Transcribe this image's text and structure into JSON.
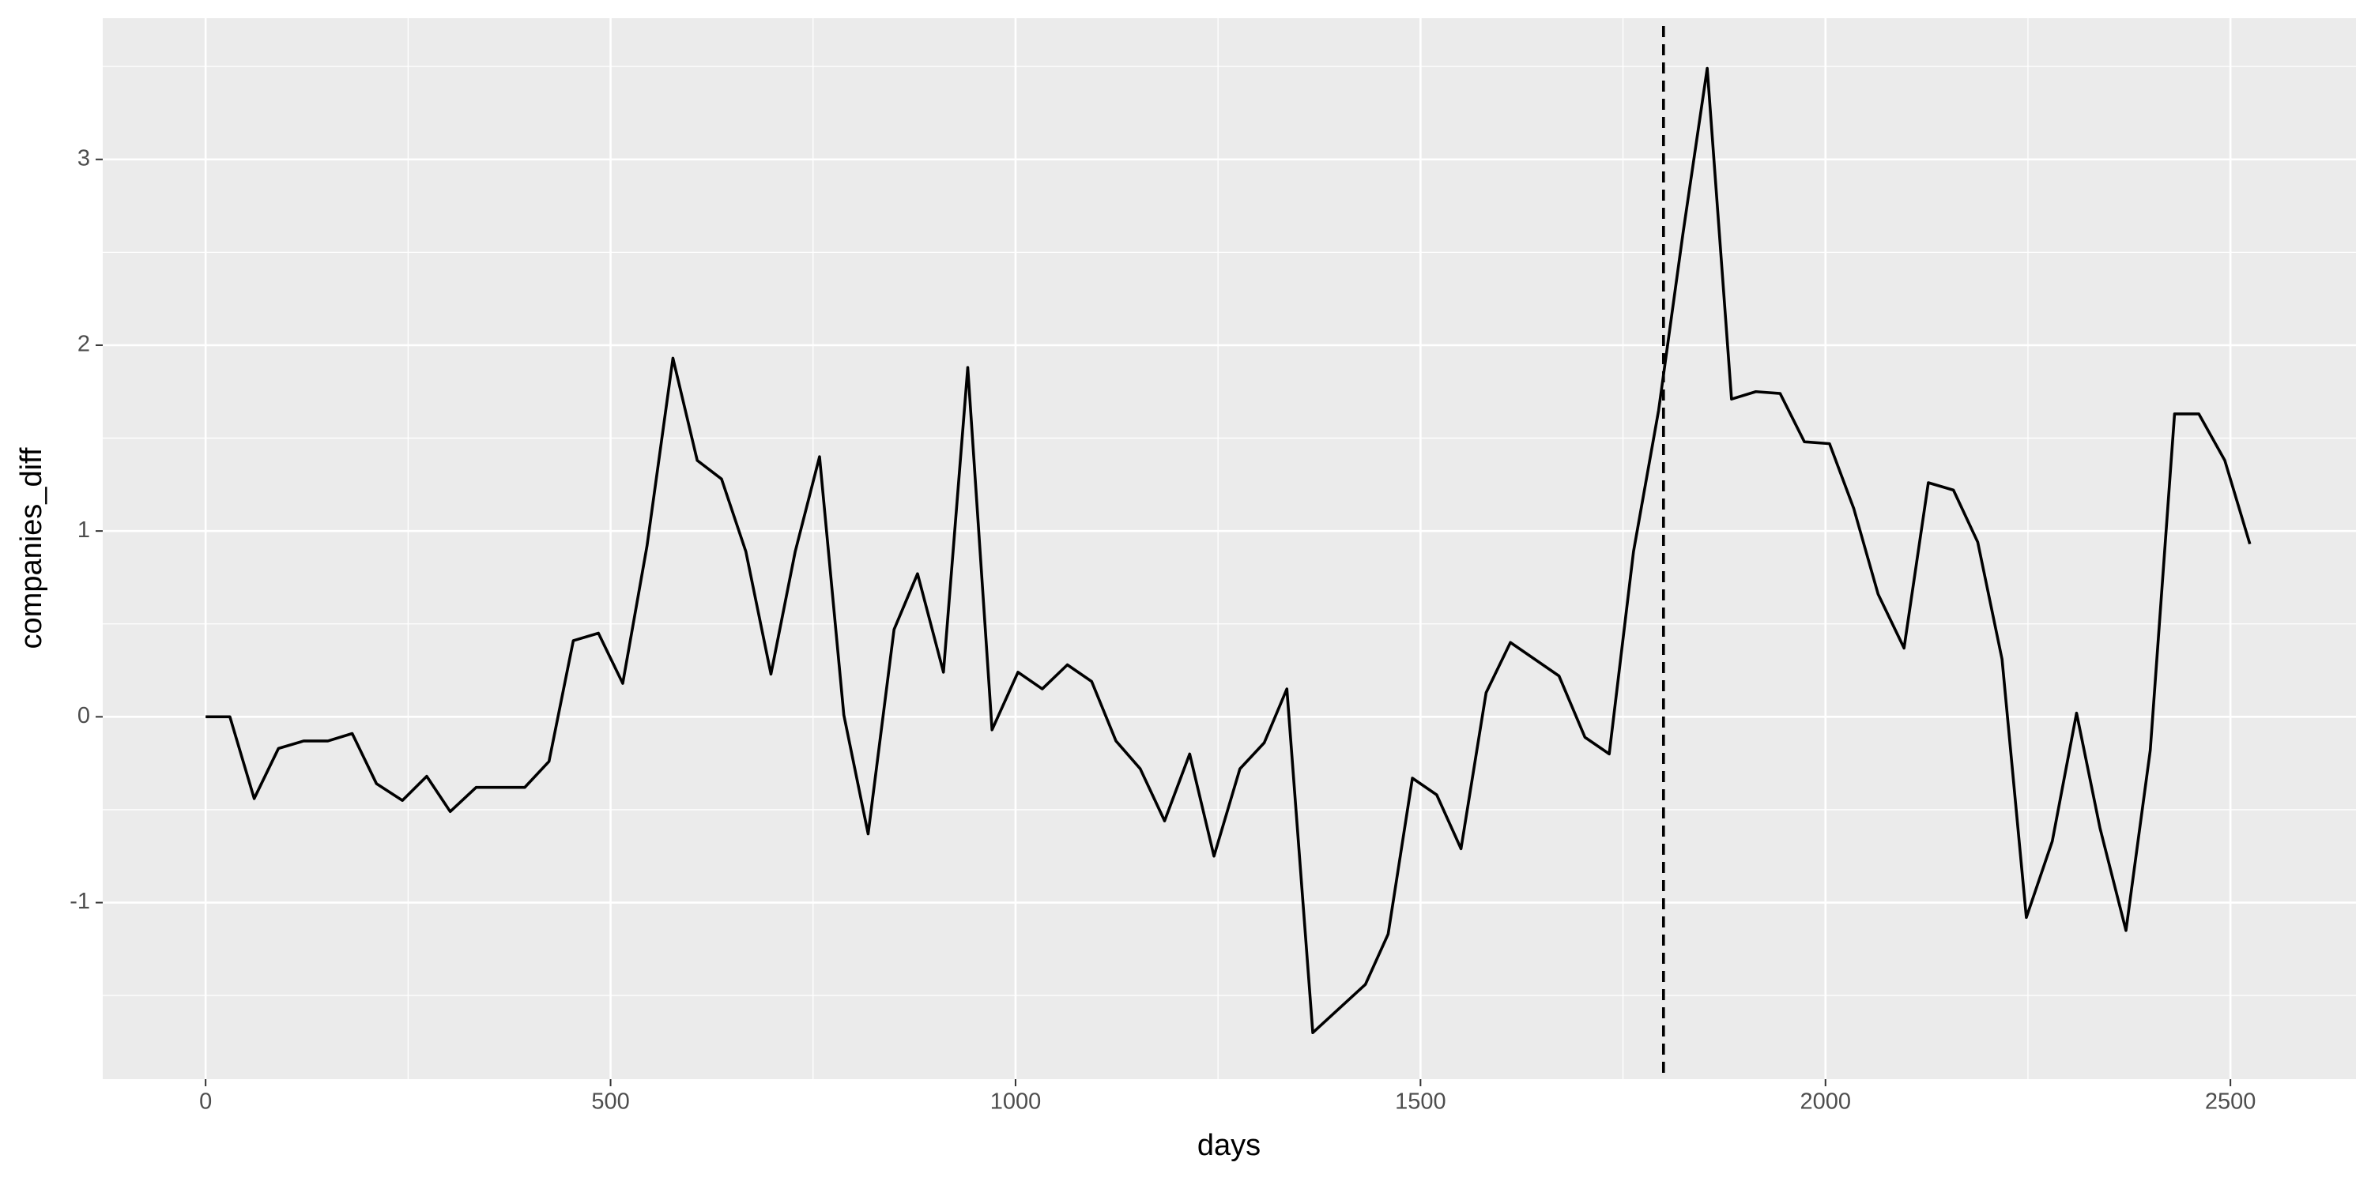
{
  "chart_data": {
    "type": "line",
    "x_label": "days",
    "y_label": "companies_diff",
    "x": [
      0,
      30,
      60,
      90,
      121,
      151,
      181,
      211,
      243,
      273,
      302,
      334,
      364,
      394,
      424,
      454,
      485,
      515,
      545,
      577,
      607,
      637,
      667,
      698,
      728,
      758,
      788,
      818,
      850,
      879,
      911,
      941,
      971,
      1003,
      1033,
      1064,
      1094,
      1124,
      1154,
      1184,
      1215,
      1245,
      1277,
      1307,
      1335,
      1367,
      1432,
      1460,
      1490,
      1520,
      1550,
      1581,
      1611,
      1671,
      1703,
      1733,
      1763,
      1794,
      1824,
      1854,
      1884,
      1914,
      1944,
      1974,
      2005,
      2035,
      2065,
      2097,
      2127,
      2158,
      2188,
      2218,
      2248,
      2280,
      2310,
      2339,
      2371,
      2401,
      2431,
      2461,
      2493,
      2524
    ],
    "series": [
      {
        "color": "#000000",
        "values": [
          0,
          0,
          -0.44,
          -0.17,
          -0.13,
          -0.13,
          -0.09,
          -0.36,
          -0.45,
          -0.32,
          -0.51,
          -0.38,
          -0.38,
          -0.38,
          -0.24,
          0.41,
          0.45,
          0.18,
          0.92,
          1.93,
          1.38,
          1.28,
          0.89,
          0.23,
          0.89,
          1.4,
          0.01,
          -0.63,
          0.47,
          0.77,
          0.24,
          1.88,
          -0.07,
          0.24,
          0.15,
          0.28,
          0.19,
          -0.13,
          -0.28,
          -0.56,
          -0.2,
          -0.75,
          -0.28,
          -0.14,
          0.15,
          -1.7,
          -1.44,
          -1.17,
          -0.33,
          -0.42,
          -0.71,
          0.13,
          0.4,
          0.22,
          -0.11,
          -0.2,
          0.89,
          1.65,
          2.6,
          3.49,
          1.71,
          1.75,
          1.74,
          1.48,
          1.47,
          1.12,
          0.66,
          0.37,
          1.26,
          1.22,
          0.94,
          0.31,
          -1.08,
          -0.67,
          0.02,
          -0.6,
          -1.15,
          -0.18,
          1.63,
          1.63,
          1.38,
          0.93
        ]
      }
    ],
    "vline": 1800,
    "xlim": [
      -127,
      2655
    ],
    "ylim": [
      -1.95,
      3.76
    ],
    "xticks": [
      0,
      500,
      1000,
      1500,
      2000,
      2500
    ],
    "yticks": [
      -1,
      0,
      1,
      2,
      3
    ],
    "grid": true
  }
}
